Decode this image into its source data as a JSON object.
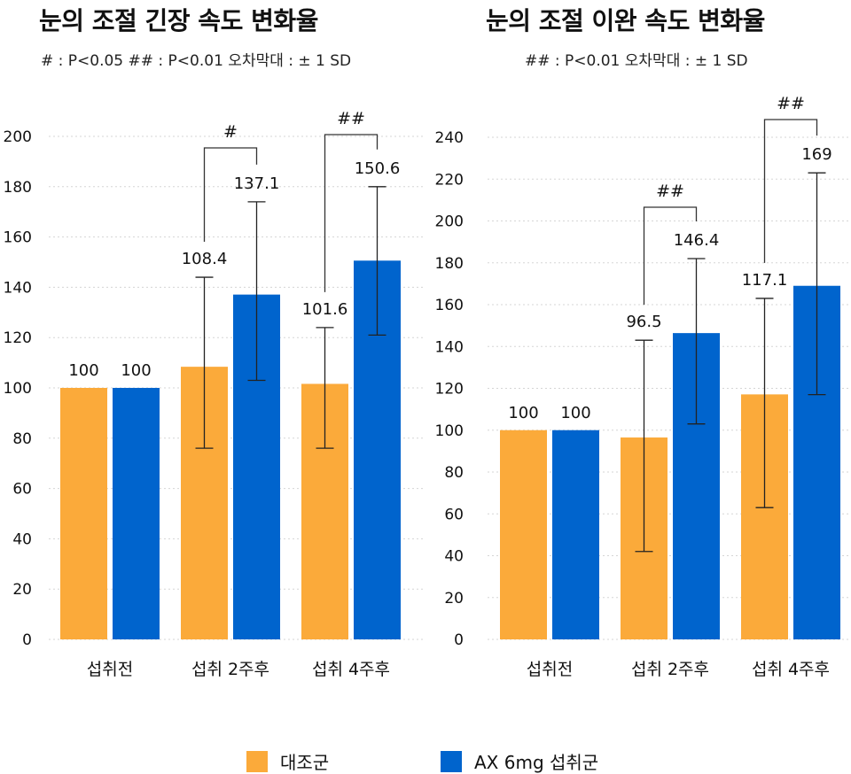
{
  "colors": {
    "control": "#FBAA3A",
    "treatment": "#0064CD",
    "grid": "#d5d5d5",
    "bracket": "#333333"
  },
  "legend": {
    "control": "대조군",
    "treatment": "AX 6mg 섭취군"
  },
  "chart_data": [
    {
      "type": "bar",
      "title": "눈의 조절 긴장 속도 변화율",
      "note": "# : P<0.05   ## : P<0.01   오차막대 : ± 1 SD",
      "categories": [
        "섭취전",
        "섭취 2주후",
        "섭취 4주후"
      ],
      "series": [
        {
          "name": "대조군",
          "values": [
            100,
            108.4,
            101.6
          ],
          "sd_low": [
            null,
            76,
            76
          ],
          "sd_high": [
            null,
            144,
            124
          ]
        },
        {
          "name": "AX 6mg 섭취군",
          "values": [
            100,
            137.1,
            150.6
          ],
          "sd_low": [
            null,
            103,
            121
          ],
          "sd_high": [
            null,
            174,
            180
          ]
        }
      ],
      "value_labels": [
        [
          "100",
          "108.4",
          "101.6"
        ],
        [
          "100",
          "137.1",
          "150.6"
        ]
      ],
      "significance": [
        {
          "category": 1,
          "label": "#"
        },
        {
          "category": 2,
          "label": "##"
        }
      ],
      "ylim": [
        0,
        200
      ],
      "yticks": [
        0,
        20,
        40,
        60,
        80,
        100,
        120,
        140,
        160,
        180,
        200
      ],
      "ytick_labels": [
        "0",
        "20",
        "40",
        "60",
        "80",
        "100",
        "120",
        "140",
        "160",
        "180",
        "200"
      ],
      "grid": true
    },
    {
      "type": "bar",
      "title": "눈의 조절 이완 속도 변화율",
      "note": "## : P<0.01   오차막대 : ± 1 SD",
      "categories": [
        "섭취전",
        "섭취 2주후",
        "섭취 4주후"
      ],
      "series": [
        {
          "name": "대조군",
          "values": [
            100,
            96.5,
            117.1
          ],
          "sd_low": [
            null,
            42,
            63
          ],
          "sd_high": [
            null,
            143,
            163
          ]
        },
        {
          "name": "AX 6mg 섭취군",
          "values": [
            100,
            146.4,
            169
          ],
          "sd_low": [
            null,
            103,
            117
          ],
          "sd_high": [
            null,
            182,
            223
          ]
        }
      ],
      "value_labels": [
        [
          "100",
          "96.5",
          "117.1"
        ],
        [
          "100",
          "146.4",
          "169"
        ]
      ],
      "significance": [
        {
          "category": 1,
          "label": "##"
        },
        {
          "category": 2,
          "label": "##"
        }
      ],
      "ylim": [
        0,
        240
      ],
      "yticks": [
        0,
        20,
        40,
        60,
        80,
        100,
        120,
        140,
        160,
        180,
        200,
        220,
        240
      ],
      "ytick_labels": [
        "0",
        "20",
        "40",
        "60",
        "80",
        "100",
        "120",
        "140",
        "160",
        "180",
        "200",
        "220",
        "240"
      ],
      "grid": true
    }
  ]
}
